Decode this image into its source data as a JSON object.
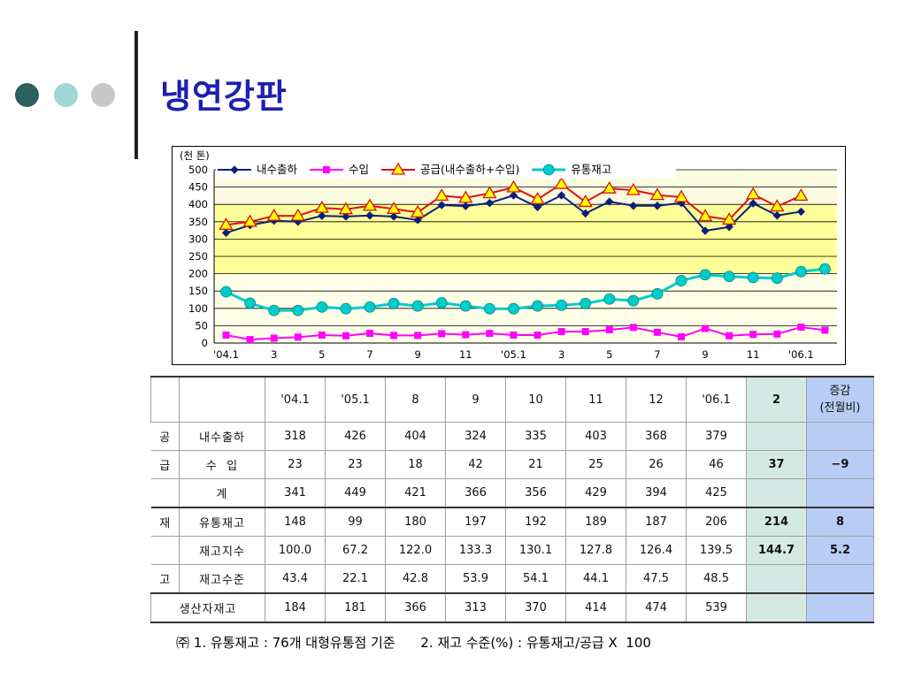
{
  "slide": {
    "title": "냉연강판"
  },
  "decor": {
    "dot_colors": [
      "#2f5f5f",
      "#9fd6d6",
      "#c8c8c8"
    ]
  },
  "chart_data": {
    "type": "line",
    "unit_label": "(천 톤)",
    "ylim": [
      0,
      500
    ],
    "yticks": [
      0,
      50,
      100,
      150,
      200,
      250,
      300,
      350,
      400,
      450,
      500
    ],
    "xtick_labels": [
      "'04.1",
      "3",
      "5",
      "7",
      "9",
      "11",
      "'05.1",
      "3",
      "5",
      "7",
      "9",
      "11",
      "'06.1"
    ],
    "n_points": 26,
    "background": {
      "top": "#fbfbe0",
      "band": "#ffff99",
      "bottom": "#ffffe8"
    },
    "legend_position": "top-left",
    "series": [
      {
        "name": "내수출하",
        "color": "#0b1f7a",
        "marker": "diamond",
        "values": [
          318,
          340,
          353,
          350,
          367,
          365,
          368,
          365,
          355,
          398,
          395,
          404,
          426,
          392,
          426,
          374,
          408,
          396,
          396,
          404,
          324,
          335,
          403,
          368,
          379,
          null
        ]
      },
      {
        "name": "수입",
        "color": "#ff00ff",
        "marker": "square",
        "values": [
          23,
          10,
          14,
          17,
          23,
          21,
          28,
          22,
          22,
          27,
          24,
          28,
          23,
          23,
          33,
          33,
          38,
          45,
          31,
          18,
          42,
          21,
          25,
          26,
          46,
          37
        ]
      },
      {
        "name": "공급(내수출하+수입)",
        "color": "#e01010",
        "marker": "triangle",
        "values": [
          341,
          350,
          367,
          367,
          390,
          386,
          396,
          387,
          377,
          425,
          419,
          432,
          449,
          415,
          459,
          407,
          446,
          441,
          427,
          421,
          366,
          356,
          429,
          394,
          425,
          null
        ]
      },
      {
        "name": "유통재고",
        "color": "#00cccc",
        "marker": "circle",
        "values": [
          148,
          115,
          94,
          94,
          104,
          99,
          104,
          114,
          107,
          116,
          107,
          99,
          99,
          107,
          109,
          114,
          127,
          122,
          142,
          180,
          197,
          192,
          189,
          187,
          206,
          214
        ]
      }
    ]
  },
  "table": {
    "header": [
      "",
      "",
      "'04.1",
      "'05.1",
      "8",
      "9",
      "10",
      "11",
      "12",
      "'06.1",
      "2",
      "증감"
    ],
    "header_sub": "(전월비)",
    "rows": {
      "domestic": {
        "group": "공",
        "label": "내수출하",
        "values": [
          "318",
          "426",
          "404",
          "324",
          "335",
          "403",
          "368",
          "379"
        ],
        "m2": "",
        "chg": ""
      },
      "imports": {
        "group": "급",
        "label": "수  입",
        "values": [
          "23",
          "23",
          "18",
          "42",
          "21",
          "25",
          "26",
          "46"
        ],
        "m2": "37",
        "chg": "−9"
      },
      "total": {
        "group": "",
        "label": "계",
        "values": [
          "341",
          "449",
          "421",
          "366",
          "356",
          "429",
          "394",
          "425"
        ],
        "m2": "",
        "chg": ""
      },
      "dist": {
        "group": "재",
        "label": "유통재고",
        "values": [
          "148",
          "99",
          "180",
          "197",
          "192",
          "189",
          "187",
          "206"
        ],
        "m2": "214",
        "chg": "8"
      },
      "index": {
        "group": "",
        "label": "재고지수",
        "values": [
          "100.0",
          "67.2",
          "122.0",
          "133.3",
          "130.1",
          "127.8",
          "126.4",
          "139.5"
        ],
        "m2": "144.7",
        "chg": "5.2"
      },
      "level": {
        "group": "고",
        "label": "재고수준",
        "values": [
          "43.4",
          "22.1",
          "42.8",
          "53.9",
          "54.1",
          "44.1",
          "47.5",
          "48.5"
        ],
        "m2": "",
        "chg": ""
      },
      "producer": {
        "label": "생산자재고",
        "values": [
          "184",
          "181",
          "366",
          "313",
          "370",
          "414",
          "474",
          "539"
        ],
        "m2": "",
        "chg": ""
      }
    }
  },
  "footnote": "㈜ 1. 유통재고 : 76개 대형유통점 기준      2. 재고 수준(%) : 유통재고/공급 X  100"
}
